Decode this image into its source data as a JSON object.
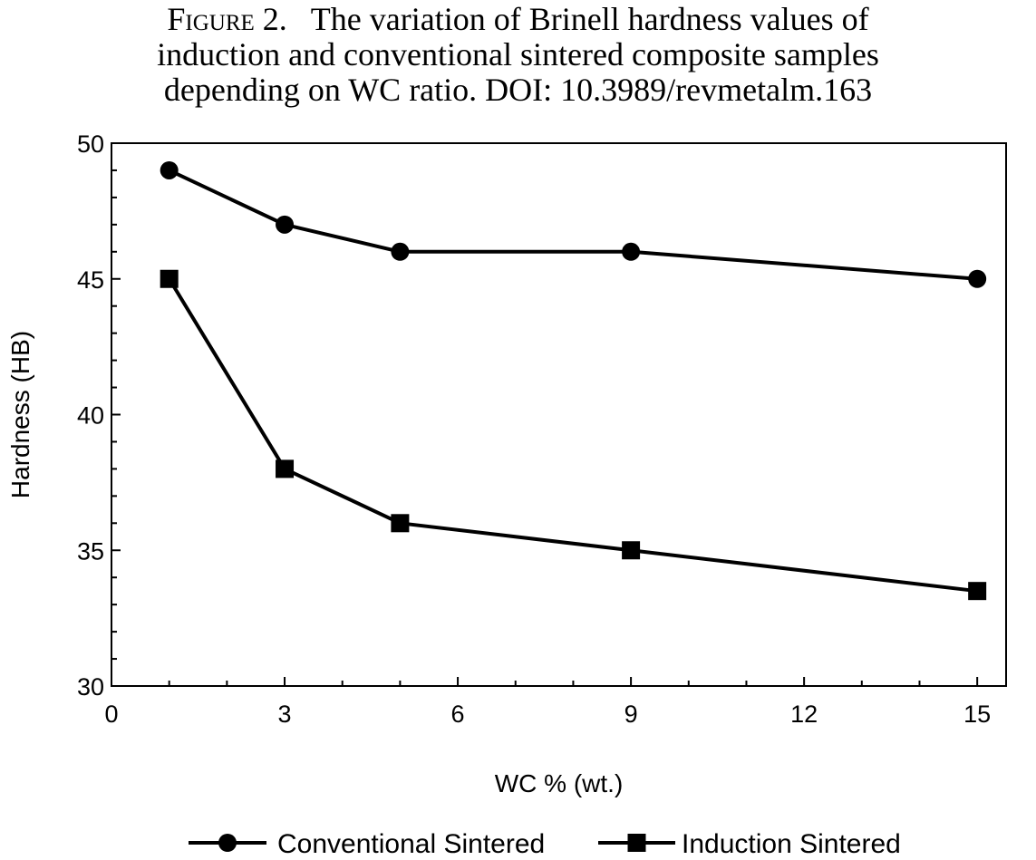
{
  "caption": {
    "figure_label": "Figure 2.",
    "line1_rest": "The variation of Brinell hardness values of",
    "line2": "induction and conventional sintered composite samples",
    "line3": "depending on WC ratio. DOI: 10.3989/revmetalm.163"
  },
  "chart_data": {
    "type": "line",
    "xlabel": "WC % (wt.)",
    "ylabel": "Hardness (HB)",
    "xlim": [
      0,
      15.5
    ],
    "ylim": [
      30,
      50
    ],
    "xticks": [
      0,
      3,
      6,
      9,
      12,
      15
    ],
    "xtick_labels": [
      "0",
      "3",
      "6",
      "9",
      "12",
      "15"
    ],
    "yticks": [
      30,
      35,
      40,
      45,
      50
    ],
    "ytick_labels": [
      "30",
      "35",
      "40",
      "45",
      "50"
    ],
    "grid": false,
    "legend_position": "bottom",
    "x": [
      1,
      3,
      5,
      9,
      15
    ],
    "series": [
      {
        "name": "Conventional Sintered",
        "marker": "circle",
        "values": [
          49,
          47,
          46,
          46,
          45
        ]
      },
      {
        "name": "Induction Sintered",
        "marker": "square",
        "values": [
          45,
          38,
          36,
          35,
          33.5
        ]
      }
    ],
    "line_color": "#000000"
  }
}
